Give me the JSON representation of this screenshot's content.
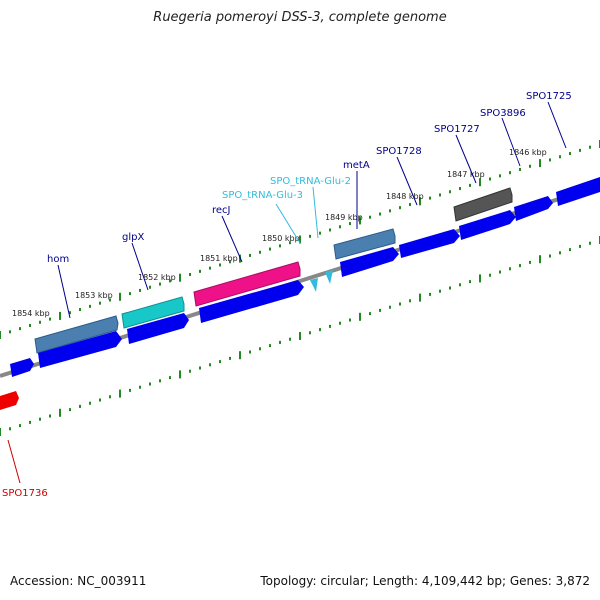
{
  "title": "Ruegeria pomeroyi DSS-3, complete genome",
  "footer": {
    "accession": "Accession: NC_003911",
    "summary": "Topology: circular; Length: 4,109,442 bp; Genes: 3,872"
  },
  "ticks": [
    "1854 kbp",
    "1853 kbp",
    "1852 kbp",
    "1851 kbp",
    "1850 kbp",
    "1849 kbp",
    "1848 kbp",
    "1847 kbp",
    "1846 kbp"
  ],
  "genes": [
    {
      "name": "hom",
      "color": "#00008b"
    },
    {
      "name": "glpX",
      "color": "#00008b"
    },
    {
      "name": "recJ",
      "color": "#00008b"
    },
    {
      "name": "SPO_tRNA-Glu-3",
      "color": "#33bbdd"
    },
    {
      "name": "SPO_tRNA-Glu-2",
      "color": "#33bbdd"
    },
    {
      "name": "metA",
      "color": "#00008b"
    },
    {
      "name": "SPO1728",
      "color": "#00008b"
    },
    {
      "name": "SPO1727",
      "color": "#00008b"
    },
    {
      "name": "SPO3896",
      "color": "#00008b"
    },
    {
      "name": "SPO1725",
      "color": "#00008b"
    },
    {
      "name": "SPO1736",
      "color": "#cc0000"
    }
  ],
  "colors": {
    "cds": "#0000ee",
    "steel": "#4a7fb0",
    "cyan": "#18c8c8",
    "magenta": "#ee1188",
    "gray_feature": "#555555",
    "red_feature": "#ee0000",
    "backbone": "#888888",
    "tick": "#228822"
  }
}
